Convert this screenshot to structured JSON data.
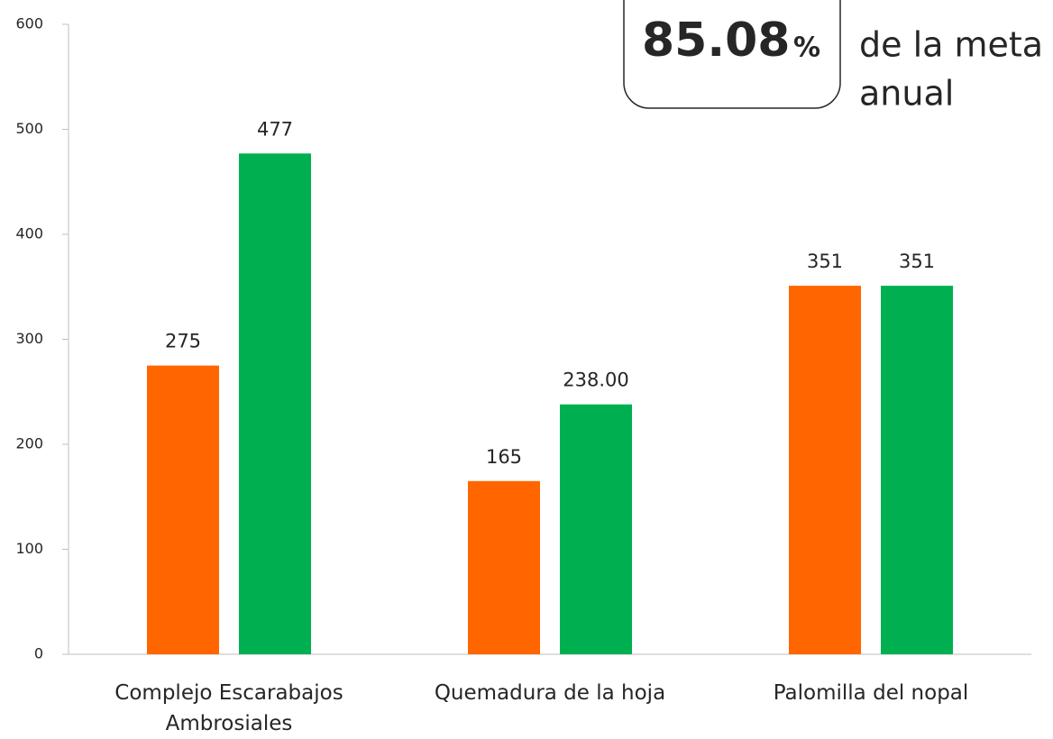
{
  "chart_data": {
    "type": "bar",
    "categories": [
      "Complejo Escarabajos Ambrosiales",
      "Quemadura de la hoja",
      "Palomilla del nopal"
    ],
    "series": [
      {
        "color": "#ff6600",
        "values": [
          275,
          165,
          351
        ]
      },
      {
        "color": "#00b050",
        "values": [
          477,
          238,
          351
        ],
        "value_labels": [
          "477",
          "238.00",
          "351"
        ]
      }
    ],
    "ylim": [
      0,
      600
    ],
    "yticks": [
      0,
      100,
      200,
      300,
      400,
      500,
      600
    ],
    "grid": false,
    "annotation": {
      "value": 85.08,
      "unit": "%",
      "text": [
        "de la meta",
        "anual"
      ]
    }
  }
}
